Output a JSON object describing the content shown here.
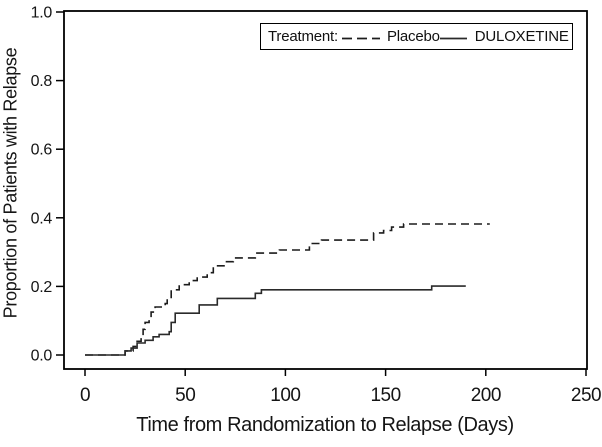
{
  "figure": {
    "background": "#ffffff",
    "line_color": "#1c1c1c",
    "axis_color": "#000000"
  },
  "chart_data": {
    "type": "line",
    "subtype": "step-after",
    "title": "",
    "xlabel": "Time from Randomization to Relapse (Days)",
    "ylabel": "Proportion of Patients with Relapse",
    "xlim": [
      0,
      250
    ],
    "ylim": [
      0.0,
      1.0
    ],
    "x_ticks": [
      "0",
      "50",
      "100",
      "150",
      "200",
      "250"
    ],
    "y_ticks": [
      "0.0",
      "0.2",
      "0.4",
      "0.6",
      "0.8",
      "1.0"
    ],
    "grid": false,
    "legend": {
      "position": "top-right",
      "title": "Treatment:"
    },
    "series": [
      {
        "name": "Placebo",
        "style": "dashed",
        "color": "#1c1c1c",
        "steps": [
          [
            0,
            0
          ],
          [
            20,
            0.012
          ],
          [
            24,
            0.025
          ],
          [
            26,
            0.04
          ],
          [
            28,
            0.055
          ],
          [
            29,
            0.075
          ],
          [
            30,
            0.095
          ],
          [
            32,
            0.11
          ],
          [
            33,
            0.125
          ],
          [
            35,
            0.14
          ],
          [
            40,
            0.15
          ],
          [
            41,
            0.165
          ],
          [
            43,
            0.19
          ],
          [
            47,
            0.205
          ],
          [
            52,
            0.217
          ],
          [
            56,
            0.227
          ],
          [
            61,
            0.24
          ],
          [
            64,
            0.26
          ],
          [
            70,
            0.272
          ],
          [
            74,
            0.283
          ],
          [
            85,
            0.297
          ],
          [
            97,
            0.306
          ],
          [
            112,
            0.325
          ],
          [
            118,
            0.335
          ],
          [
            144,
            0.356
          ],
          [
            149,
            0.363
          ],
          [
            153,
            0.373
          ],
          [
            159,
            0.382
          ],
          [
            202,
            0.382
          ]
        ]
      },
      {
        "name": "DULOXETINE",
        "style": "solid",
        "color": "#2a2a2a",
        "steps": [
          [
            0,
            0
          ],
          [
            20,
            0.012
          ],
          [
            23,
            0.02
          ],
          [
            26,
            0.035
          ],
          [
            30,
            0.043
          ],
          [
            34,
            0.053
          ],
          [
            37,
            0.06
          ],
          [
            42,
            0.068
          ],
          [
            43,
            0.095
          ],
          [
            45,
            0.122
          ],
          [
            57,
            0.146
          ],
          [
            66,
            0.165
          ],
          [
            85,
            0.18
          ],
          [
            88,
            0.19
          ],
          [
            173,
            0.201
          ],
          [
            190,
            0.201
          ]
        ]
      }
    ]
  }
}
